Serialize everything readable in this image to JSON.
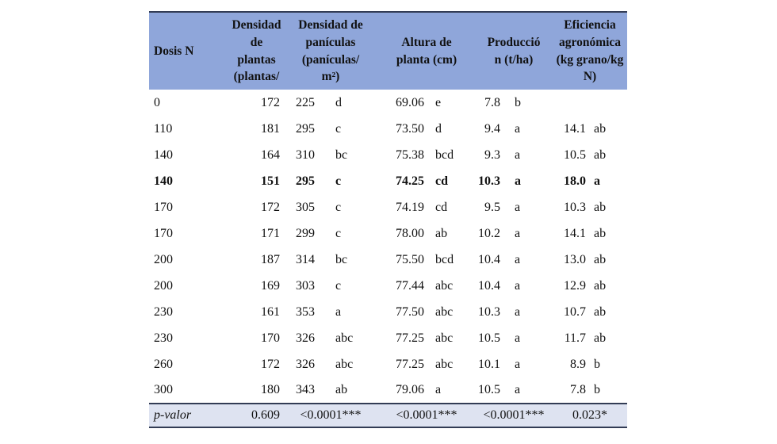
{
  "table": {
    "headers": [
      "Dosis N",
      "Densidad\nde\nplantas\n(plantas/",
      "Densidad de\npanículas\n(panículas/\nm²)",
      "Altura de\nplanta (cm)",
      "Producció\nn (t/ha)",
      "Eficiencia\nagronómica\n(kg grano/kg\nN)"
    ],
    "rows": [
      [
        "0",
        "172",
        "225",
        "d",
        "69.06",
        "e",
        "7.8",
        "b",
        "",
        ""
      ],
      [
        "110",
        "181",
        "295",
        "c",
        "73.50",
        "d",
        "9.4",
        "a",
        "14.1",
        "ab"
      ],
      [
        "140",
        "164",
        "310",
        "bc",
        "75.38",
        "bcd",
        "9.3",
        "a",
        "10.5",
        "ab"
      ],
      [
        "140",
        "151",
        "295",
        "c",
        "74.25",
        "cd",
        "10.3",
        "a",
        "18.0",
        "a"
      ],
      [
        "170",
        "172",
        "305",
        "c",
        "74.19",
        "cd",
        "9.5",
        "a",
        "10.3",
        "ab"
      ],
      [
        "170",
        "171",
        "299",
        "c",
        "78.00",
        "ab",
        "10.2",
        "a",
        "14.1",
        "ab"
      ],
      [
        "200",
        "187",
        "314",
        "bc",
        "75.50",
        "bcd",
        "10.4",
        "a",
        "13.0",
        "ab"
      ],
      [
        "200",
        "169",
        "303",
        "c",
        "77.44",
        "abc",
        "10.4",
        "a",
        "12.9",
        "ab"
      ],
      [
        "230",
        "161",
        "353",
        "a",
        "77.50",
        "abc",
        "10.3",
        "a",
        "10.7",
        "ab"
      ],
      [
        "230",
        "170",
        "326",
        "abc",
        "77.25",
        "abc",
        "10.5",
        "a",
        "11.7",
        "ab"
      ],
      [
        "260",
        "172",
        "326",
        "abc",
        "77.25",
        "abc",
        "10.1",
        "a",
        "8.9",
        "b"
      ],
      [
        "300",
        "180",
        "343",
        "ab",
        "79.06",
        "a",
        "10.5",
        "a",
        "7.8",
        "b"
      ]
    ],
    "bold_row_index": 3,
    "p_row": {
      "label": "p-valor",
      "plantas": "0.609",
      "paniculas": "<0.0001***",
      "altura": "<0.0001***",
      "produccion": "<0.0001***",
      "eficiencia": "0.023*"
    }
  },
  "colors": {
    "header_bg": "#8fa6da",
    "p_row_bg": "#dee3f1",
    "border": "#323c55",
    "text": "#111111",
    "page_bg": "#ffffff"
  }
}
